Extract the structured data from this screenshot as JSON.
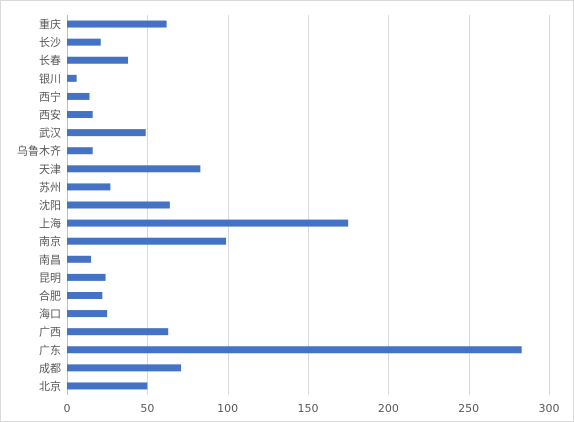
{
  "chart_data": {
    "type": "bar",
    "orientation": "horizontal",
    "categories": [
      "重庆",
      "长沙",
      "长春",
      "银川",
      "西宁",
      "西安",
      "武汉",
      "乌鲁木齐",
      "天津",
      "苏州",
      "沈阳",
      "上海",
      "南京",
      "南昌",
      "昆明",
      "合肥",
      "海口",
      "广西",
      "广东",
      "成都",
      "北京"
    ],
    "values": [
      62,
      21,
      38,
      6,
      14,
      16,
      49,
      16,
      83,
      27,
      64,
      175,
      99,
      15,
      24,
      22,
      25,
      63,
      283,
      71,
      50
    ],
    "xlim": [
      0,
      300
    ],
    "xticks": [
      0,
      50,
      100,
      150,
      200,
      250,
      300
    ],
    "grid": true,
    "bar_color": "#4472c4"
  }
}
